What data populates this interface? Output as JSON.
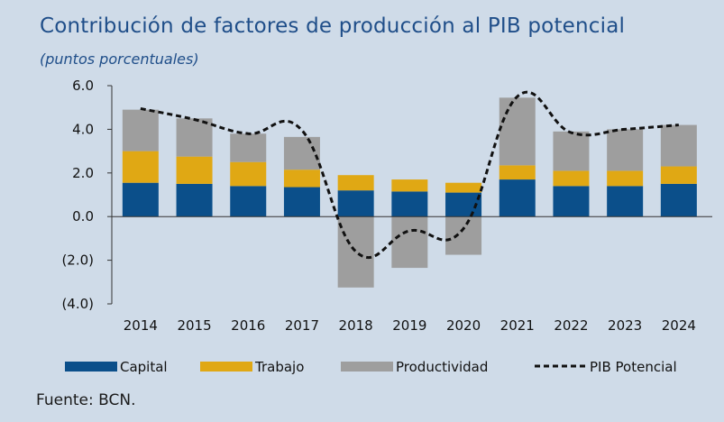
{
  "header": {
    "title": "Contribución de factores de producción al PIB potencial",
    "subtitle": "(puntos porcentuales)"
  },
  "footer": {
    "source": "Fuente: BCN."
  },
  "colors": {
    "capital": "#0b4f8a",
    "trabajo": "#e0a814",
    "productividad": "#9e9e9e",
    "line": "#111111",
    "axis": "#333333"
  },
  "chart_data": {
    "type": "bar",
    "stacked": true,
    "title": "Contribución de factores de producción al PIB potencial",
    "subtitle": "(puntos porcentuales)",
    "categories": [
      "2014",
      "2015",
      "2016",
      "2017",
      "2018",
      "2019",
      "2020",
      "2021",
      "2022",
      "2023",
      "2024"
    ],
    "ylim": [
      -4.0,
      6.0
    ],
    "yticks": [
      6.0,
      4.0,
      2.0,
      0.0,
      -2.0,
      -4.0
    ],
    "ytick_labels": [
      "6.0",
      "4.0",
      "2.0",
      "0.0",
      "(2.0)",
      "(4.0)"
    ],
    "grid": false,
    "legend_position": "bottom",
    "series": [
      {
        "name": "Capital",
        "kind": "bar",
        "values": [
          1.55,
          1.5,
          1.4,
          1.35,
          1.2,
          1.15,
          1.1,
          1.7,
          1.4,
          1.4,
          1.5
        ]
      },
      {
        "name": "Trabajo",
        "kind": "bar",
        "values": [
          1.45,
          1.25,
          1.1,
          0.8,
          0.7,
          0.55,
          0.45,
          0.65,
          0.7,
          0.7,
          0.8
        ]
      },
      {
        "name": "Productividad",
        "kind": "bar",
        "values": [
          1.9,
          1.75,
          1.3,
          1.5,
          -3.25,
          -2.35,
          -1.75,
          3.1,
          1.8,
          1.9,
          1.9
        ]
      },
      {
        "name": "PIB Potencial",
        "kind": "line",
        "style": "dashed",
        "values": [
          4.95,
          4.45,
          3.8,
          3.95,
          -1.6,
          -0.65,
          -0.55,
          5.5,
          3.85,
          4.0,
          4.2
        ]
      }
    ]
  }
}
